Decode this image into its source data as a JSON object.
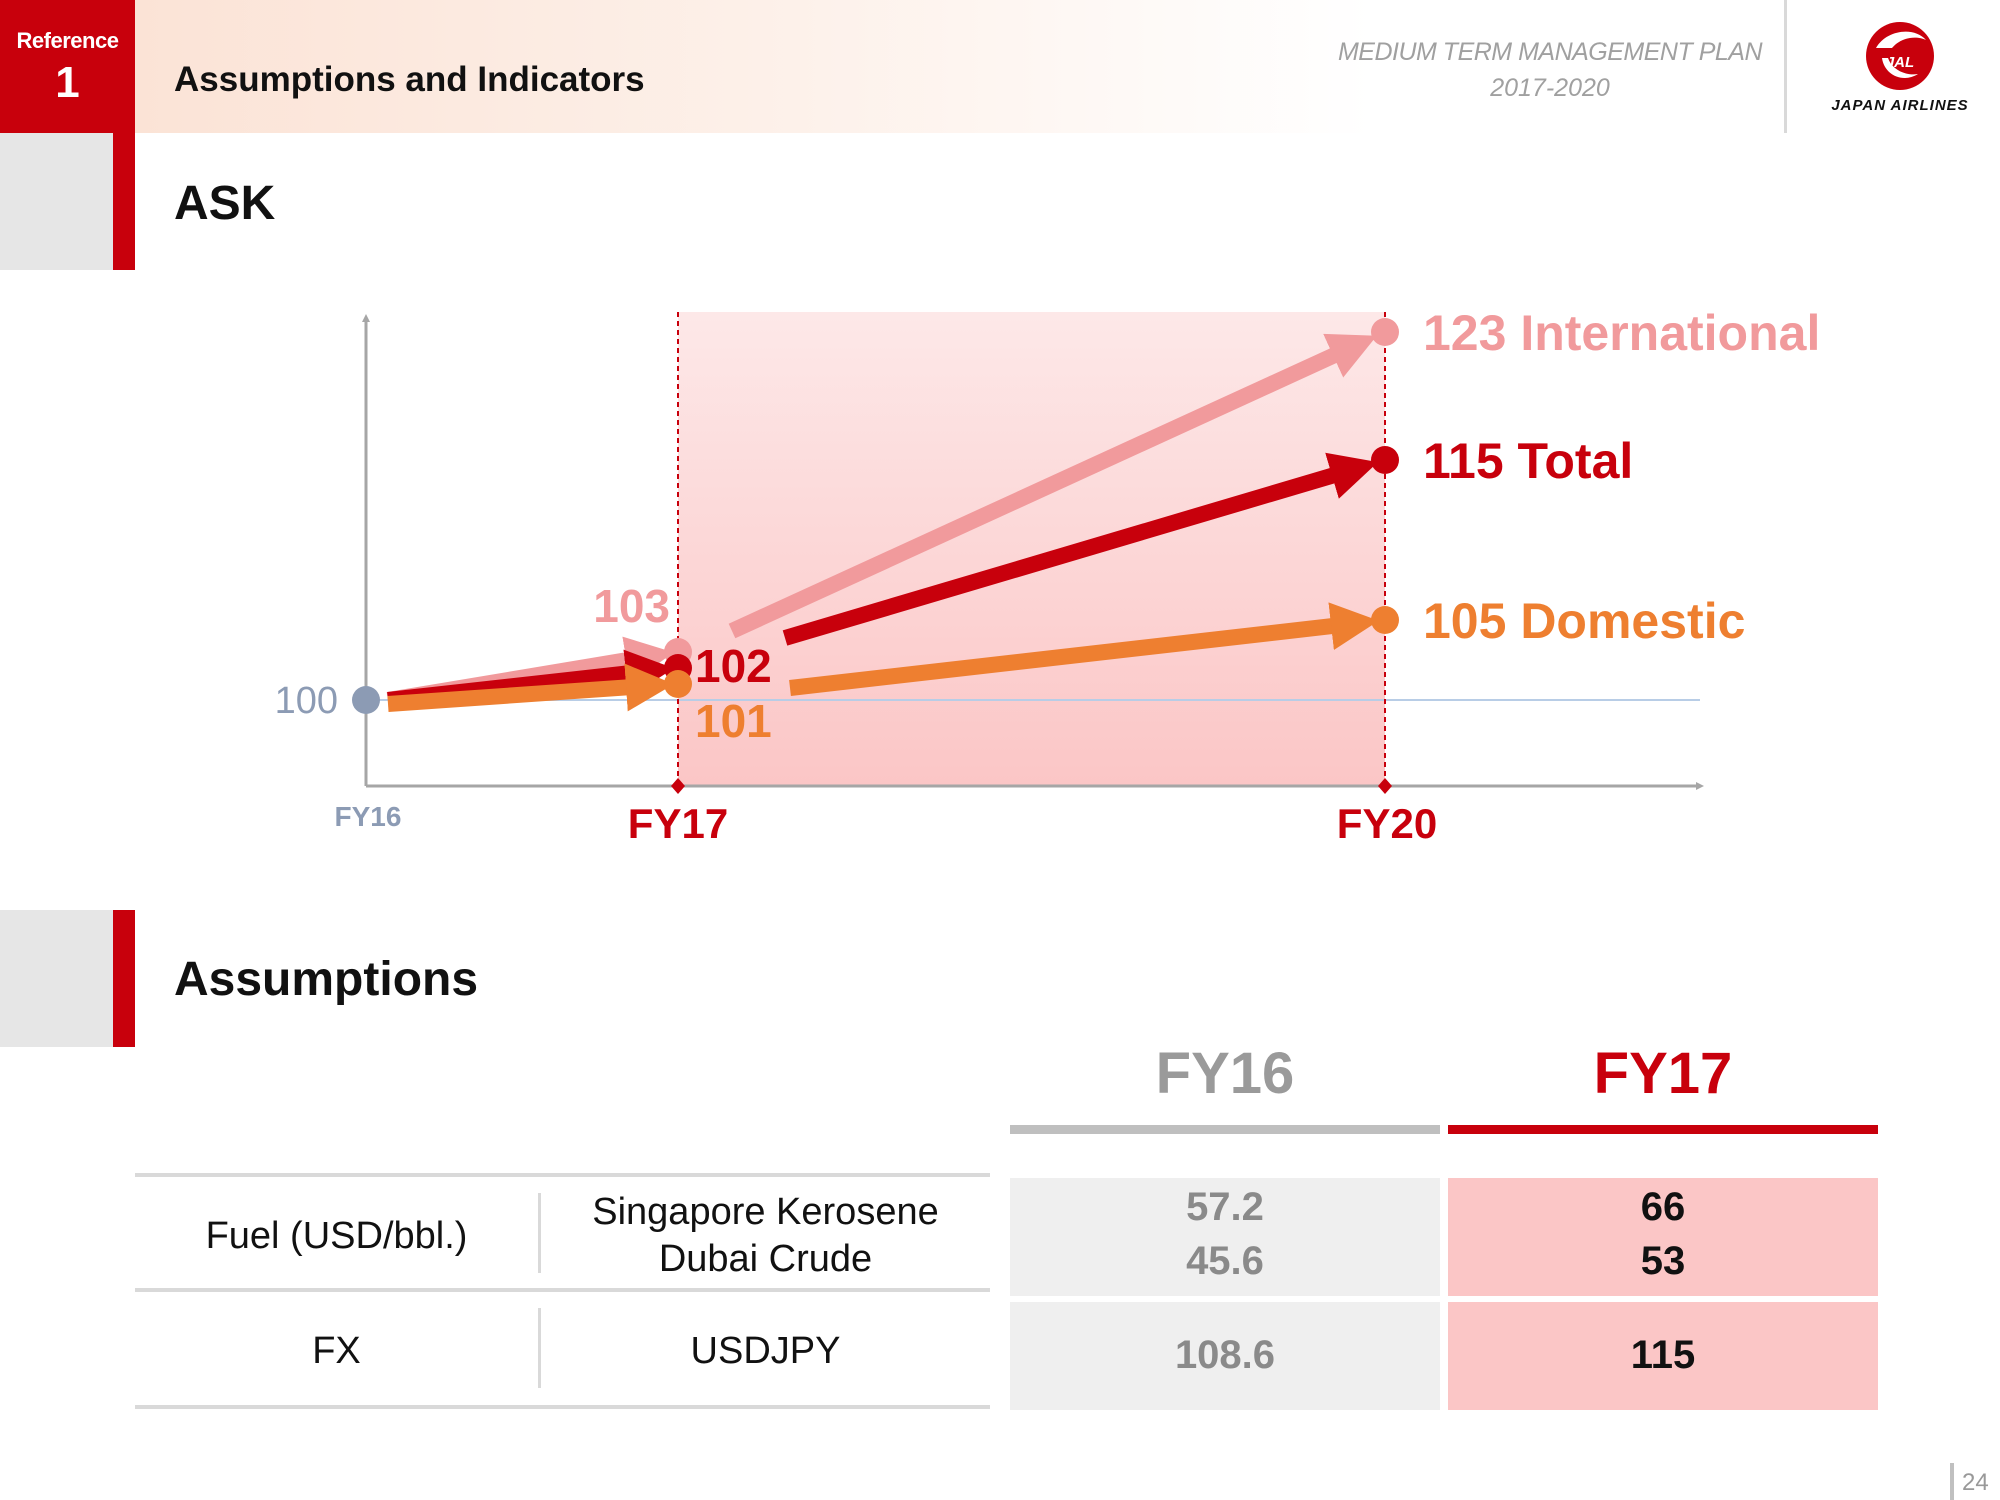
{
  "header": {
    "reference_label": "Reference",
    "reference_number": "1",
    "title": "Assumptions and Indicators",
    "plan_title": "MEDIUM TERM MANAGEMENT PLAN",
    "plan_years": "2017-2020",
    "logo_badge": "JAL",
    "logo_text": "JAPAN AIRLINES"
  },
  "sections": {
    "ask_title": "ASK",
    "assumptions_title": "Assumptions"
  },
  "colors": {
    "brand_red": "#c8000c",
    "international": "#f19a9c",
    "total": "#c8000c",
    "domestic": "#ee7f30",
    "base": "#8c9bb4",
    "fy16_gray": "#9a9a9a"
  },
  "chart_data": {
    "type": "line",
    "x": [
      "FY16",
      "FY17",
      "FY20"
    ],
    "base_value": 100,
    "series": [
      {
        "name": "International",
        "values": [
          100,
          103,
          123
        ],
        "labels": [
          "",
          "103",
          "123 International"
        ]
      },
      {
        "name": "Total",
        "values": [
          100,
          102,
          115
        ],
        "labels": [
          "",
          "102",
          "115 Total"
        ]
      },
      {
        "name": "Domestic",
        "values": [
          100,
          101,
          105
        ],
        "labels": [
          "",
          "101",
          "105 Domestic"
        ]
      }
    ],
    "base_label": "100",
    "highlight_range": [
      "FY17",
      "FY20"
    ]
  },
  "table": {
    "columns": [
      "FY16",
      "FY17"
    ],
    "rows": [
      {
        "category": "Fuel (USD/bbl.)",
        "items": [
          "Singapore Kerosene",
          "Dubai Crude"
        ],
        "fy16": [
          "57.2",
          "45.6"
        ],
        "fy17": [
          "66",
          "53"
        ]
      },
      {
        "category": "FX",
        "items": [
          "USDJPY"
        ],
        "fy16": [
          "108.6"
        ],
        "fy17": [
          "115"
        ]
      }
    ]
  },
  "footer": {
    "page_number": "24"
  }
}
